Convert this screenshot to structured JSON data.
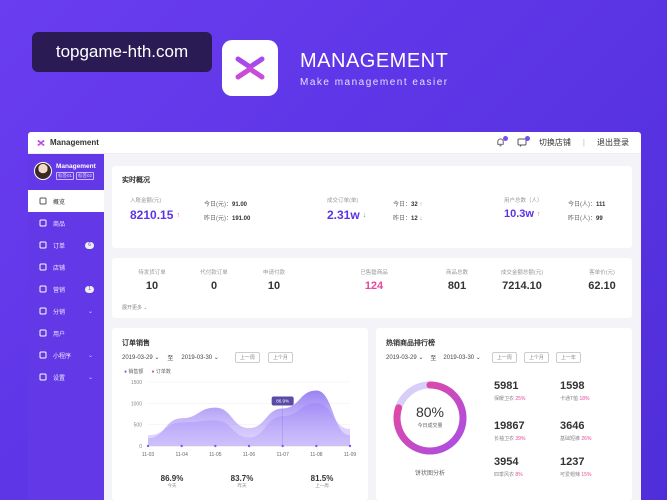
{
  "hero": {
    "watermark": "topgame-hth.com",
    "title": "MANAGEMENT",
    "subtitle": "Make management easier"
  },
  "topbar": {
    "brand": "Management",
    "switch_store": "切换店铺",
    "separator": "|",
    "logout": "退出登录"
  },
  "sidebar": {
    "profile_name": "Management",
    "tags": [
      "标签01",
      "标签02"
    ],
    "items": [
      {
        "label": "概览",
        "icon": "overview-icon",
        "active": true
      },
      {
        "label": "商品",
        "icon": "goods-icon"
      },
      {
        "label": "订单",
        "icon": "order-icon",
        "badge": "6"
      },
      {
        "label": "店铺",
        "icon": "store-icon"
      },
      {
        "label": "营销",
        "icon": "marketing-icon",
        "badge": "1"
      },
      {
        "label": "分销",
        "icon": "distribution-icon",
        "chevron": "⌄"
      },
      {
        "label": "用户",
        "icon": "user-icon"
      },
      {
        "label": "小程序",
        "icon": "miniapp-icon",
        "chevron": "⌄"
      },
      {
        "label": "设置",
        "icon": "settings-icon",
        "chevron": "⌄"
      }
    ]
  },
  "realtime": {
    "title": "实时概况",
    "pay_label": "入账金额(元)",
    "pay_value": "8210.15",
    "pay_today_label": "今日(元)：",
    "pay_today": "91.00",
    "pay_yesterday_label": "昨日(元)：",
    "pay_yesterday": "191.00",
    "orders_label": "成交订单(单)",
    "orders_value": "2.31w",
    "orders_today_label": "今日：",
    "orders_today": "32",
    "orders_yesterday_label": "昨日：",
    "orders_yesterday": "12",
    "users_label": "用户总数（人）",
    "users_value": "10.3w",
    "users_today_label": "今日(人)：",
    "users_today": "111",
    "users_yesterday_label": "昨日(人)：",
    "users_yesterday": "99",
    "accent": "#5b34e4"
  },
  "stats": {
    "items": [
      {
        "label": "待发货订单",
        "value": "10"
      },
      {
        "label": "代付款订单",
        "value": "0"
      },
      {
        "label": "申请付款",
        "value": "10"
      },
      {
        "label": "已售罄商品",
        "value": "124",
        "color": "#e8479a"
      },
      {
        "label": "商品总数",
        "value": "801"
      },
      {
        "label": "成交金额总额(元)",
        "value": "7214.10"
      },
      {
        "label": "客单价(元)",
        "value": "62.10"
      }
    ],
    "expand": "展开更多"
  },
  "order_sales": {
    "title": "订单销售",
    "date_from": "2019-03-29",
    "to": "至",
    "date_to": "2019-03-30",
    "prev_week": "上一周",
    "prev_month": "上个月",
    "legend_sales": "销售额",
    "legend_orders": "订单数",
    "tooltip": "86.9%",
    "summary": [
      {
        "value": "86.9%",
        "label": "今天"
      },
      {
        "value": "83.7%",
        "label": "昨天"
      },
      {
        "value": "81.5%",
        "label": "上一周"
      }
    ]
  },
  "chart_data": {
    "type": "area",
    "x": [
      "11-03",
      "11-04",
      "11-05",
      "11-06",
      "11-07",
      "11-08",
      "11-09"
    ],
    "ylim": [
      0,
      1500
    ],
    "yticks": [
      0,
      500,
      1000,
      1500
    ],
    "series": [
      {
        "name": "销售额",
        "values": [
          180,
          650,
          900,
          420,
          880,
          1300,
          250
        ]
      },
      {
        "name": "订单数",
        "values": [
          250,
          550,
          600,
          200,
          700,
          1000,
          400
        ]
      }
    ],
    "colors": [
      "#7b5cf0",
      "#c7b8fb"
    ]
  },
  "ranking": {
    "title": "热销商品排行榜",
    "date_from": "2019-03-29",
    "to": "至",
    "date_to": "2019-03-30",
    "prev_week": "上一周",
    "prev_day": "上个月",
    "prev_year": "上一年",
    "donut_value": "80%",
    "donut_fraction": 0.8,
    "donut_caption": "今日成交量",
    "donut_footer": "饼状图分析",
    "items": [
      {
        "value": "5981",
        "label": "保暖卫衣",
        "pct": "25%"
      },
      {
        "value": "1598",
        "label": "卡通T恤",
        "pct": "18%"
      },
      {
        "value": "19867",
        "label": "长袖卫衣",
        "pct": "39%"
      },
      {
        "value": "3646",
        "label": "基础短裤",
        "pct": "26%"
      },
      {
        "value": "3954",
        "label": "四季风衣",
        "pct": "8%"
      },
      {
        "value": "1237",
        "label": "可爱帽辣",
        "pct": "15%"
      }
    ]
  }
}
